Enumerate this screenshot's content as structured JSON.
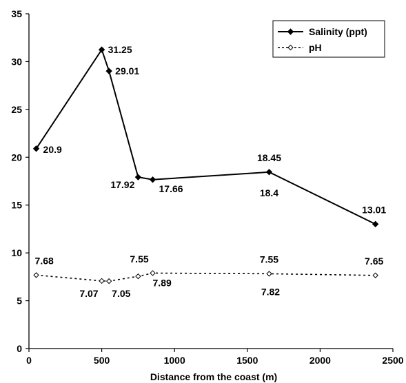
{
  "chart_data": {
    "type": "line",
    "title": "",
    "xlabel": "Distance from the coast (m)",
    "ylabel": "",
    "xlim": [
      0,
      2500
    ],
    "ylim": [
      0,
      35
    ],
    "xticks": [
      0,
      500,
      1000,
      1500,
      2000,
      2500
    ],
    "yticks": [
      0,
      5,
      10,
      15,
      20,
      25,
      30,
      35
    ],
    "grid": false,
    "legend_position": "top-right",
    "series": [
      {
        "name": "Salinity (ppt)",
        "style": "solid",
        "marker": "filled-diamond",
        "x": [
          50,
          500,
          550,
          750,
          850,
          1650,
          2380
        ],
        "y": [
          20.9,
          31.25,
          29.01,
          17.92,
          17.66,
          18.45,
          13.01
        ],
        "labels": [
          "20.9",
          "31.25",
          "29.01",
          "17.92",
          "17.66",
          "18.45",
          "13.01"
        ]
      },
      {
        "name": "pH",
        "style": "dotted",
        "marker": "open-diamond",
        "x": [
          50,
          500,
          550,
          750,
          850,
          1650,
          2380
        ],
        "y": [
          7.68,
          7.07,
          7.05,
          7.55,
          7.89,
          7.82,
          7.65
        ],
        "labels": [
          "7.68",
          "7.07",
          "7.05",
          "7.55",
          "7.89",
          "7.82",
          "7.65"
        ]
      }
    ],
    "extra_labels": [
      "7.55",
      "18.4"
    ]
  }
}
